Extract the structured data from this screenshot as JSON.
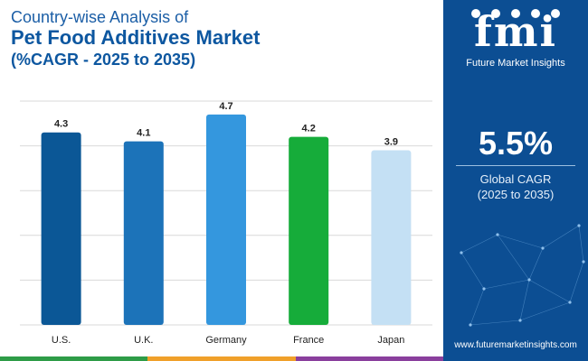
{
  "title": {
    "line1": "Country-wise Analysis of",
    "line2": "Pet Food Additives Market",
    "line3": "(%CAGR - 2025 to 2035)"
  },
  "chart_data": {
    "type": "bar",
    "categories": [
      "U.S.",
      "U.K.",
      "Germany",
      "France",
      "Japan"
    ],
    "values": [
      4.3,
      4.1,
      4.7,
      4.2,
      3.9
    ],
    "value_labels": [
      "4.3",
      "4.1",
      "4.7",
      "4.2",
      "3.9"
    ],
    "bar_colors": [
      "#0b5796",
      "#1c73b9",
      "#3497de",
      "#16ac3a",
      "#c4e0f4"
    ],
    "ylim": [
      0,
      5
    ],
    "ytick_step": 1,
    "grid": true,
    "title": "Country-wise Analysis of Pet Food Additives Market (%CAGR - 2025 to 2035)",
    "xlabel": "",
    "ylabel": ""
  },
  "sidebar": {
    "logo_text": "fmi",
    "company": "Future Market Insights",
    "global_cagr_value": "5.5%",
    "global_cagr_label": "Global CAGR",
    "global_cagr_period": "(2025 to 2035)",
    "website": "www.futuremarketinsights.com",
    "background_color": "#0c4e93"
  },
  "footer_colors": [
    "#2e9c47",
    "#f0a02a",
    "#8a3f9d"
  ]
}
